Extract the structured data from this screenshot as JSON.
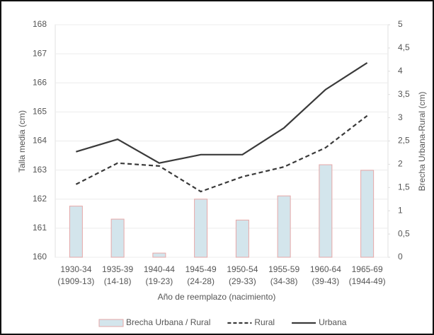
{
  "chart_data": {
    "type": "combo",
    "categories": [
      [
        "1930-34",
        "(1909-13)"
      ],
      [
        "1935-39",
        "(14-18)"
      ],
      [
        "1940-44",
        "(19-23)"
      ],
      [
        "1945-49",
        "(24-28)"
      ],
      [
        "1950-54",
        "(29-33)"
      ],
      [
        "1955-59",
        "(34-38)"
      ],
      [
        "1960-64",
        "(39-43)"
      ],
      [
        "1965-69",
        "(1944-49)"
      ]
    ],
    "xlabel": "Año de reemplazo (nacimiento)",
    "ylabel": "Talla media (cm)",
    "y2label": "Brecha Urbana-Rural (cm)",
    "ylim": [
      160,
      168
    ],
    "yticks": [
      160,
      161,
      162,
      163,
      164,
      165,
      166,
      167,
      168
    ],
    "y2lim": [
      0,
      5
    ],
    "y2ticks": [
      0,
      {
        "value": 0.5,
        "label": "0,5"
      },
      1,
      {
        "value": 1.5,
        "label": "1,5"
      },
      2,
      {
        "value": 2.5,
        "label": "2,5"
      },
      3,
      {
        "value": 3.5,
        "label": "3,5"
      },
      4,
      {
        "value": 4.5,
        "label": "4,5"
      },
      5
    ],
    "legend": "bottom",
    "series": [
      {
        "name": "Brecha Urbana / Rural",
        "type": "bar",
        "axis": "y2",
        "color": "#d3e5ec",
        "edge_color": "#e6a7a7",
        "values": [
          1.1,
          0.82,
          0.09,
          1.25,
          0.8,
          1.32,
          1.99,
          1.87
        ]
      },
      {
        "name": "Rural",
        "type": "line",
        "dashed": true,
        "color": "#3a3a3a",
        "values": [
          162.51,
          163.24,
          163.14,
          162.26,
          162.77,
          163.11,
          163.77,
          164.87
        ]
      },
      {
        "name": "Urbana",
        "type": "line",
        "dashed": false,
        "color": "#3a3a3a",
        "values": [
          163.63,
          164.06,
          163.24,
          163.53,
          163.53,
          164.45,
          165.77,
          166.69
        ]
      }
    ]
  }
}
